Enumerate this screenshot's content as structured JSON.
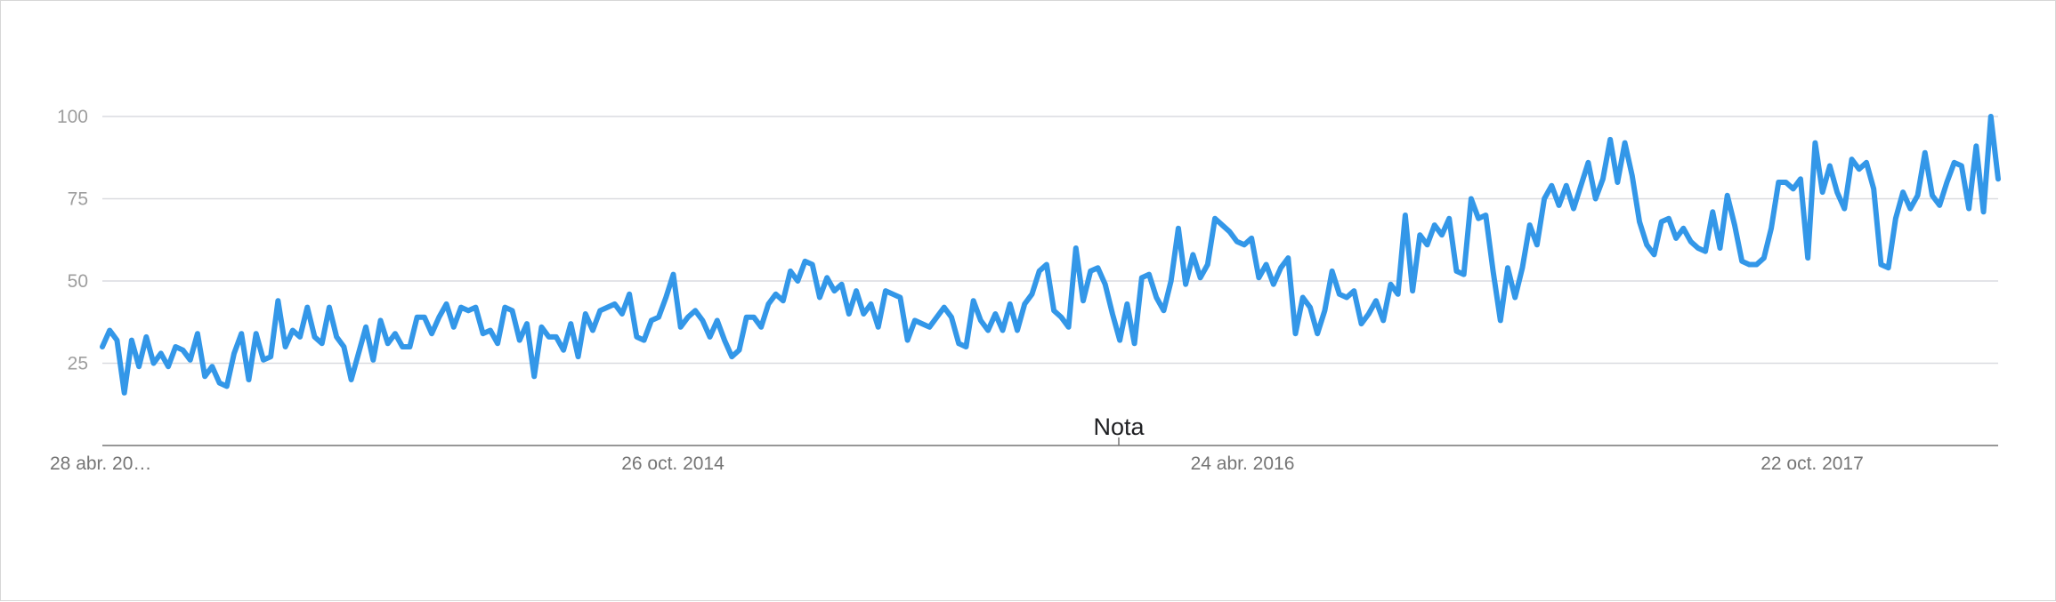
{
  "chart_data": {
    "type": "line",
    "title": "",
    "xlabel": "",
    "ylabel": "",
    "ylim": [
      0,
      100
    ],
    "y_ticks": [
      25,
      50,
      75,
      100
    ],
    "x_tick_labels": [
      "28 abr. 20…",
      "26 oct. 2014",
      "24 abr. 2016",
      "22 oct. 2017"
    ],
    "annotation": "Nota",
    "grid": true,
    "legend": "none",
    "line_color": "#3397e8",
    "grid_color": "#dadce0",
    "axis_color": "#757575",
    "series": [
      {
        "values": [
          30,
          35,
          32,
          16,
          32,
          24,
          33,
          25,
          28,
          24,
          30,
          29,
          26,
          34,
          21,
          24,
          19,
          18,
          28,
          34,
          20,
          34,
          26,
          27,
          44,
          30,
          35,
          33,
          42,
          33,
          31,
          42,
          33,
          30,
          20,
          28,
          36,
          26,
          38,
          31,
          34,
          30,
          30,
          39,
          39,
          34,
          39,
          43,
          36,
          42,
          41,
          42,
          34,
          35,
          31,
          42,
          41,
          32,
          37,
          21,
          36,
          33,
          33,
          29,
          37,
          27,
          40,
          35,
          41,
          42,
          43,
          40,
          46,
          33,
          32,
          38,
          39,
          45,
          52,
          36,
          39,
          41,
          38,
          33,
          38,
          32,
          27,
          29,
          39,
          39,
          36,
          43,
          46,
          44,
          53,
          50,
          56,
          55,
          45,
          51,
          47,
          49,
          40,
          47,
          40,
          43,
          36,
          47,
          46,
          45,
          32,
          38,
          37,
          36,
          39,
          42,
          39,
          31,
          30,
          44,
          38,
          35,
          40,
          35,
          43,
          35,
          43,
          46,
          53,
          55,
          41,
          39,
          36,
          60,
          44,
          53,
          54,
          49,
          40,
          32,
          43,
          31,
          51,
          52,
          45,
          41,
          50,
          66,
          49,
          58,
          51,
          55,
          69,
          67,
          65,
          62,
          61,
          63,
          51,
          55,
          49,
          54,
          57,
          34,
          45,
          42,
          34,
          41,
          53,
          46,
          45,
          47,
          37,
          40,
          44,
          38,
          49,
          46,
          70,
          47,
          64,
          61,
          67,
          64,
          69,
          53,
          52,
          75,
          69,
          70,
          53,
          38,
          54,
          45,
          54,
          67,
          61,
          75,
          79,
          73,
          79,
          72,
          79,
          86,
          75,
          81,
          93,
          80,
          92,
          82,
          68,
          61,
          58,
          68,
          69,
          63,
          66,
          62,
          60,
          59,
          71,
          60,
          76,
          67,
          56,
          55,
          55,
          57,
          66,
          80,
          80,
          78,
          81,
          57,
          92,
          77,
          85,
          77,
          72,
          87,
          84,
          86,
          78,
          55,
          54,
          69,
          77,
          72,
          76,
          89,
          76,
          73,
          80,
          86,
          85,
          72,
          91,
          71,
          100,
          81
        ]
      }
    ]
  }
}
